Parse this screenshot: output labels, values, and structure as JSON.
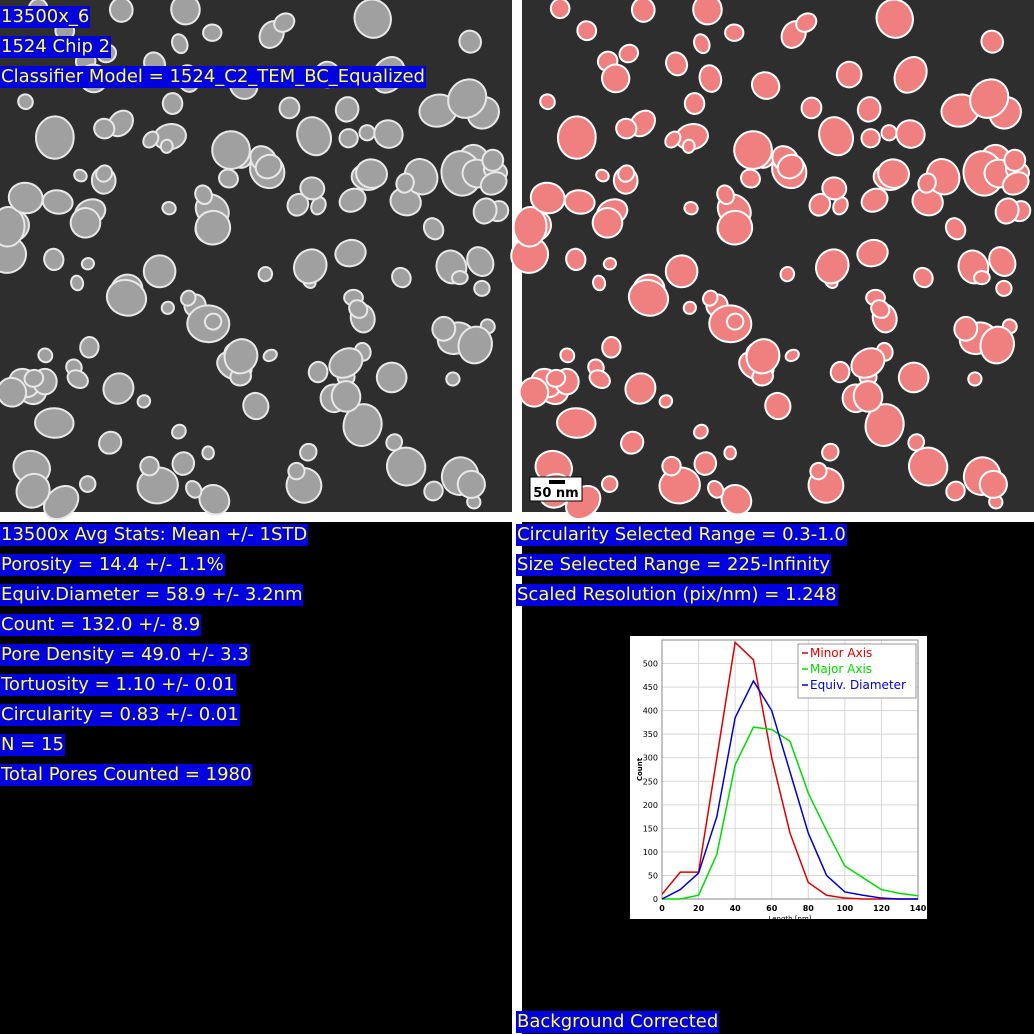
{
  "left_image": {
    "labels": [
      "13500x_6",
      "1524 Chip 2",
      "Classifier Model = 1524_C2_TEM_BC_Equalized"
    ]
  },
  "right_image": {
    "scale_bar": "50 nm"
  },
  "stats": {
    "lines": [
      "13500x Avg Stats: Mean +/- 1STD",
      "Porosity = 14.4 +/- 1.1%",
      "Equiv.Diameter = 58.9 +/- 3.2nm",
      "Count = 132.0 +/- 8.9",
      "Pore Density = 49.0 +/- 3.3",
      "Tortuosity = 1.10 +/- 0.01",
      "Circularity = 0.83 +/- 0.01",
      "N = 15",
      "Total Pores Counted = 1980"
    ]
  },
  "settings": {
    "lines": [
      "Circularity Selected Range = 0.3-1.0",
      "Size Selected Range = 225-Infinity",
      "Scaled Resolution (pix/nm) = 1.248"
    ]
  },
  "footer": "Background Corrected",
  "chart_data": {
    "type": "line",
    "xlabel": "Length [nm]",
    "ylabel": "Count",
    "x": [
      0,
      10,
      20,
      30,
      40,
      50,
      60,
      70,
      80,
      90,
      100,
      110,
      120,
      130,
      140
    ],
    "series": [
      {
        "name": "Minor Axis",
        "color": "#e00000",
        "values": [
          10,
          57,
          57,
          300,
          545,
          508,
          300,
          140,
          35,
          8,
          2,
          0,
          0,
          0,
          0
        ]
      },
      {
        "name": "Major Axis",
        "color": "#00dd00",
        "values": [
          0,
          0,
          8,
          95,
          285,
          365,
          360,
          335,
          225,
          145,
          70,
          45,
          20,
          12,
          7
        ]
      },
      {
        "name": "Equiv. Diameter",
        "color": "#0000dd",
        "values": [
          0,
          20,
          55,
          175,
          385,
          463,
          400,
          270,
          140,
          50,
          15,
          8,
          2,
          0,
          0
        ]
      }
    ],
    "xlim": [
      0,
      140
    ],
    "xticks": [
      0,
      20,
      40,
      60,
      80,
      100,
      120,
      140
    ],
    "ylim": [
      0,
      550
    ],
    "yticks": [
      0,
      50,
      100,
      150,
      200,
      250,
      300,
      350,
      400,
      450,
      500
    ],
    "grid": true,
    "legend": "upper right"
  }
}
